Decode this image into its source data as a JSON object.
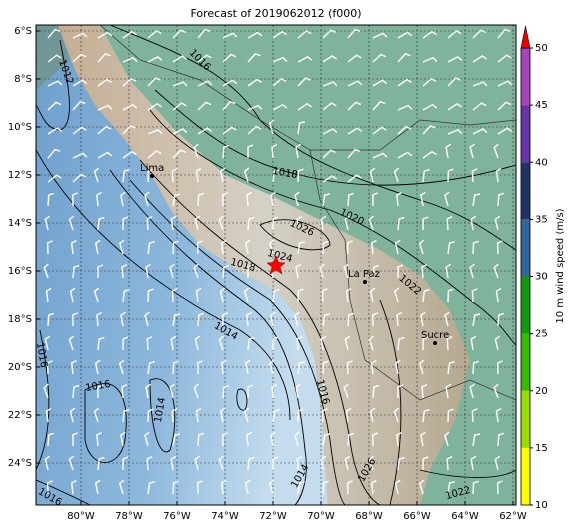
{
  "title": "Forecast of 2019062012 (f000)",
  "lat_labels": [
    "6°S",
    "8°S",
    "10°S",
    "12°S",
    "14°S",
    "16°S",
    "18°S",
    "20°S",
    "22°S",
    "24°S"
  ],
  "lon_labels": [
    "80°W",
    "78°W",
    "76°W",
    "74°W",
    "72°W",
    "70°W",
    "68°W",
    "66°W",
    "64°W",
    "62°W"
  ],
  "cities": [
    "Lima",
    "La Paz",
    "Sucre"
  ],
  "contour_labels": [
    "1012",
    "1016",
    "1018",
    "1020",
    "1026",
    "1024",
    "1018",
    "1022",
    "1014",
    "1016",
    "1016",
    "1014",
    "1016",
    "1014",
    "1026",
    "1022",
    "1016"
  ],
  "colorbar": {
    "label": "10 m wind speed (m/s)",
    "ticks": [
      10,
      15,
      20,
      25,
      30,
      35,
      40,
      45,
      50
    ],
    "colors": [
      "#ffff00",
      "#99dd00",
      "#33bb00",
      "#119911",
      "#336699",
      "#223366",
      "#6633aa",
      "#aa44bb"
    ],
    "extend_color": "#ee0000"
  }
}
